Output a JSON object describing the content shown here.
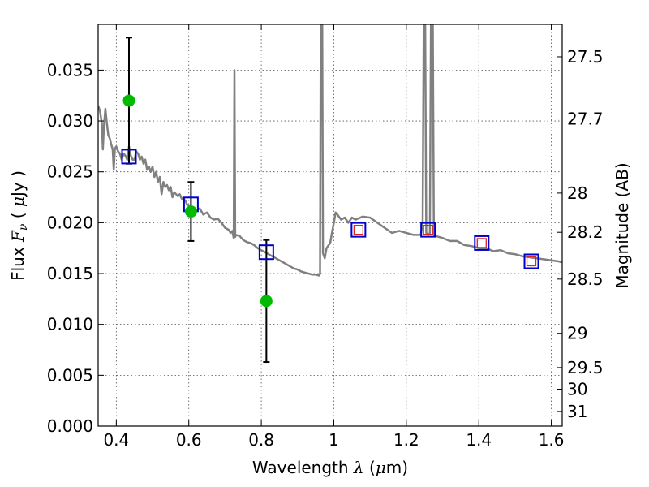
{
  "chart_data": {
    "type": "scatter",
    "xlabel": "Wavelength  λ (μm)",
    "ylabel": "Flux  F_ν  ( μJy )",
    "ylabel_parts": {
      "pre": "Flux  ",
      "sym": "F",
      "sub": "ν",
      "mid": "  ( ",
      "mu": "μ",
      "post": "Jy )"
    },
    "xlabel_parts": {
      "pre": "Wavelength  ",
      "sym": "λ",
      "mid": " (",
      "mu": "μ",
      "post": "m)"
    },
    "y2label": "Magnitude (AB)",
    "xlim": [
      0.35,
      1.63
    ],
    "ylim": [
      0.0,
      0.0395
    ],
    "grid": true,
    "x_ticks": [
      0.4,
      0.6,
      0.8,
      1.0,
      1.2,
      1.4,
      1.6
    ],
    "x_tick_labels": [
      "0.4",
      "0.6",
      "0.8",
      "1",
      "1.2",
      "1.4",
      "1.6"
    ],
    "y_ticks": [
      0.0,
      0.005,
      0.01,
      0.015,
      0.02,
      0.025,
      0.03,
      0.035
    ],
    "y_tick_labels": [
      "0.000",
      "0.005",
      "0.010",
      "0.015",
      "0.020",
      "0.025",
      "0.030",
      "0.035"
    ],
    "mag_ticks": [
      27.5,
      27.7,
      28,
      28.2,
      28.5,
      29,
      29.5,
      30,
      31
    ],
    "mag_tick_labels": [
      "27.5",
      "27.7",
      "28",
      "28.2",
      "28.5",
      "29",
      "29.5",
      "30",
      "31"
    ],
    "colors": {
      "model": "#808080",
      "observed": "#00bb00",
      "model_box": "#0000cc",
      "nir_box": "#dd2222",
      "errorbar": "#000000",
      "grid": "#555555"
    },
    "series": [
      {
        "kind": "line",
        "points": [
          [
            0.35,
            0.0315
          ],
          [
            0.355,
            0.031
          ],
          [
            0.36,
            0.0298
          ],
          [
            0.363,
            0.0272
          ],
          [
            0.366,
            0.0296
          ],
          [
            0.37,
            0.0312
          ],
          [
            0.374,
            0.0298
          ],
          [
            0.378,
            0.0286
          ],
          [
            0.382,
            0.0283
          ],
          [
            0.386,
            0.0277
          ],
          [
            0.39,
            0.0272
          ],
          [
            0.393,
            0.0252
          ],
          [
            0.396,
            0.0273
          ],
          [
            0.4,
            0.0275
          ],
          [
            0.405,
            0.027
          ],
          [
            0.41,
            0.0268
          ],
          [
            0.415,
            0.0262
          ],
          [
            0.42,
            0.0268
          ],
          [
            0.425,
            0.0266
          ],
          [
            0.43,
            0.0262
          ],
          [
            0.435,
            0.0275
          ],
          [
            0.44,
            0.0266
          ],
          [
            0.445,
            0.0262
          ],
          [
            0.45,
            0.0262
          ],
          [
            0.455,
            0.027
          ],
          [
            0.46,
            0.0268
          ],
          [
            0.465,
            0.0262
          ],
          [
            0.47,
            0.0265
          ],
          [
            0.475,
            0.0258
          ],
          [
            0.48,
            0.0262
          ],
          [
            0.485,
            0.0252
          ],
          [
            0.49,
            0.0255
          ],
          [
            0.495,
            0.025
          ],
          [
            0.5,
            0.0255
          ],
          [
            0.505,
            0.0245
          ],
          [
            0.51,
            0.025
          ],
          [
            0.515,
            0.024
          ],
          [
            0.52,
            0.0245
          ],
          [
            0.525,
            0.0228
          ],
          [
            0.53,
            0.024
          ],
          [
            0.535,
            0.0235
          ],
          [
            0.54,
            0.0237
          ],
          [
            0.545,
            0.0232
          ],
          [
            0.55,
            0.0235
          ],
          [
            0.555,
            0.0225
          ],
          [
            0.56,
            0.023
          ],
          [
            0.565,
            0.0228
          ],
          [
            0.57,
            0.0226
          ],
          [
            0.575,
            0.0228
          ],
          [
            0.58,
            0.0224
          ],
          [
            0.585,
            0.0222
          ],
          [
            0.59,
            0.0222
          ],
          [
            0.595,
            0.0218
          ],
          [
            0.6,
            0.0217
          ],
          [
            0.61,
            0.0214
          ],
          [
            0.62,
            0.0212
          ],
          [
            0.63,
            0.0214
          ],
          [
            0.64,
            0.0208
          ],
          [
            0.65,
            0.021
          ],
          [
            0.66,
            0.0205
          ],
          [
            0.67,
            0.0203
          ],
          [
            0.68,
            0.0204
          ],
          [
            0.69,
            0.02
          ],
          [
            0.7,
            0.0195
          ],
          [
            0.71,
            0.0193
          ],
          [
            0.715,
            0.019
          ],
          [
            0.72,
            0.0192
          ],
          [
            0.724,
            0.0185
          ],
          [
            0.726,
            0.035
          ],
          [
            0.728,
            0.0186
          ],
          [
            0.73,
            0.0188
          ],
          [
            0.74,
            0.0187
          ],
          [
            0.75,
            0.0183
          ],
          [
            0.76,
            0.0181
          ],
          [
            0.77,
            0.018
          ],
          [
            0.78,
            0.0178
          ],
          [
            0.79,
            0.0175
          ],
          [
            0.8,
            0.0173
          ],
          [
            0.81,
            0.0171
          ],
          [
            0.82,
            0.0169
          ],
          [
            0.83,
            0.0167
          ],
          [
            0.84,
            0.0165
          ],
          [
            0.85,
            0.0163
          ],
          [
            0.86,
            0.0161
          ],
          [
            0.87,
            0.0159
          ],
          [
            0.88,
            0.0157
          ],
          [
            0.89,
            0.0155
          ],
          [
            0.9,
            0.0154
          ],
          [
            0.91,
            0.0152
          ],
          [
            0.92,
            0.0151
          ],
          [
            0.93,
            0.015
          ],
          [
            0.94,
            0.0149
          ],
          [
            0.95,
            0.0149
          ],
          [
            0.96,
            0.0148
          ],
          [
            0.962,
            0.015
          ],
          [
            0.964,
            0.0395
          ],
          [
            0.968,
            0.0395
          ],
          [
            0.97,
            0.017
          ],
          [
            0.975,
            0.0165
          ],
          [
            0.98,
            0.0175
          ],
          [
            0.99,
            0.018
          ],
          [
            0.995,
            0.019
          ],
          [
            1.0,
            0.02
          ],
          [
            1.005,
            0.021
          ],
          [
            1.01,
            0.0208
          ],
          [
            1.02,
            0.0203
          ],
          [
            1.03,
            0.0205
          ],
          [
            1.04,
            0.02
          ],
          [
            1.05,
            0.0205
          ],
          [
            1.06,
            0.0203
          ],
          [
            1.08,
            0.0206
          ],
          [
            1.1,
            0.0205
          ],
          [
            1.12,
            0.02
          ],
          [
            1.14,
            0.0195
          ],
          [
            1.16,
            0.019
          ],
          [
            1.18,
            0.0192
          ],
          [
            1.2,
            0.019
          ],
          [
            1.22,
            0.0188
          ],
          [
            1.24,
            0.0188
          ],
          [
            1.245,
            0.02
          ],
          [
            1.248,
            0.0395
          ],
          [
            1.252,
            0.0395
          ],
          [
            1.255,
            0.019
          ],
          [
            1.26,
            0.0188
          ],
          [
            1.265,
            0.019
          ],
          [
            1.268,
            0.0395
          ],
          [
            1.273,
            0.0395
          ],
          [
            1.276,
            0.0188
          ],
          [
            1.28,
            0.0187
          ],
          [
            1.3,
            0.0185
          ],
          [
            1.32,
            0.0182
          ],
          [
            1.34,
            0.0182
          ],
          [
            1.36,
            0.0178
          ],
          [
            1.38,
            0.0177
          ],
          [
            1.4,
            0.0175
          ],
          [
            1.42,
            0.0175
          ],
          [
            1.44,
            0.0172
          ],
          [
            1.46,
            0.0173
          ],
          [
            1.48,
            0.017
          ],
          [
            1.5,
            0.0169
          ],
          [
            1.52,
            0.0167
          ],
          [
            1.54,
            0.0166
          ],
          [
            1.56,
            0.0165
          ],
          [
            1.58,
            0.0164
          ],
          [
            1.6,
            0.0163
          ],
          [
            1.62,
            0.0162
          ],
          [
            1.63,
            0.0161
          ]
        ]
      },
      {
        "kind": "points_with_errorbars",
        "points": [
          {
            "x": 0.435,
            "y": 0.032,
            "ylo": 0.0258,
            "yhi": 0.0382
          },
          {
            "x": 0.606,
            "y": 0.0211,
            "ylo": 0.0182,
            "yhi": 0.024
          },
          {
            "x": 0.814,
            "y": 0.0123,
            "ylo": 0.0063,
            "yhi": 0.0183
          }
        ]
      },
      {
        "kind": "box_markers",
        "points": [
          {
            "x": 0.435,
            "y": 0.0265
          },
          {
            "x": 0.606,
            "y": 0.0218
          },
          {
            "x": 0.814,
            "y": 0.0171
          },
          {
            "x": 1.068,
            "y": 0.0193
          },
          {
            "x": 1.26,
            "y": 0.0193
          },
          {
            "x": 1.408,
            "y": 0.018
          },
          {
            "x": 1.545,
            "y": 0.0162
          }
        ]
      },
      {
        "kind": "inner_box_markers",
        "points": [
          {
            "x": 1.068,
            "y": 0.0193
          },
          {
            "x": 1.26,
            "y": 0.0193
          },
          {
            "x": 1.408,
            "y": 0.018
          },
          {
            "x": 1.545,
            "y": 0.0162
          }
        ]
      }
    ]
  }
}
